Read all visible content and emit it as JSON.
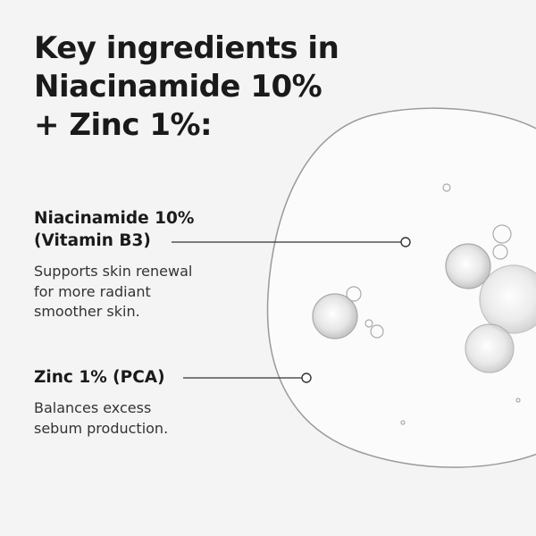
{
  "title": {
    "lines": [
      "Key ingredients in",
      "Niacinamide 10%",
      "+ Zinc 1%:"
    ]
  },
  "ingredients": [
    {
      "name_lines": [
        "Niacinamide 10%",
        "(Vitamin B3)"
      ],
      "description_lines": [
        "Supports skin renewal",
        "for more radiant",
        "smoother skin."
      ]
    },
    {
      "name_lines": [
        "Zinc 1% (PCA)"
      ],
      "description_lines": [
        "Balances excess",
        "sebum production."
      ]
    }
  ],
  "colors": {
    "background": "#f4f4f4",
    "text": "#1a1a1a",
    "line": "#333333"
  }
}
